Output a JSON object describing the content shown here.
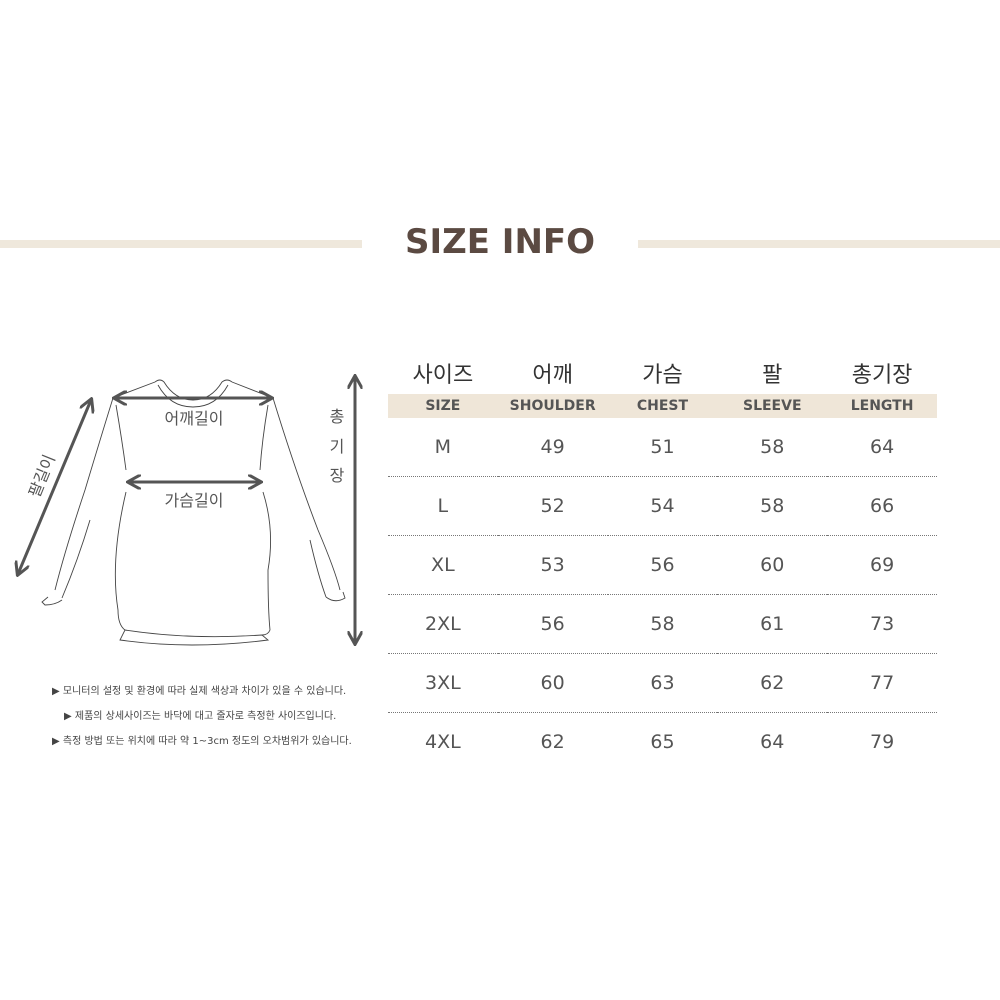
{
  "title": "SIZE INFO",
  "diagram": {
    "shoulder": "어깨길이",
    "chest": "가슴길이",
    "sleeve": "팔길이",
    "length": [
      "총",
      "기",
      "장"
    ]
  },
  "notes": [
    "▶ 모니터의 설정 및 환경에 따라 실제 색상과 차이가 있을 수 있습니다.",
    "▶ 제품의 상세사이즈는 바닥에 대고 줄자로 측정한 사이즈입니다.",
    "▶ 측정 방법 또는 위치에 따라 약 1~3cm 정도의 오차범위가 있습니다."
  ],
  "table": {
    "headers_kr": [
      "사이즈",
      "어깨",
      "가슴",
      "팔",
      "총기장"
    ],
    "headers_en": [
      "SIZE",
      "SHOULDER",
      "CHEST",
      "SLEEVE",
      "LENGTH"
    ],
    "rows": [
      [
        "M",
        "49",
        "51",
        "58",
        "64"
      ],
      [
        "L",
        "52",
        "54",
        "58",
        "66"
      ],
      [
        "XL",
        "53",
        "56",
        "60",
        "69"
      ],
      [
        "2XL",
        "56",
        "58",
        "61",
        "73"
      ],
      [
        "3XL",
        "60",
        "63",
        "62",
        "77"
      ],
      [
        "4XL",
        "62",
        "65",
        "64",
        "79"
      ]
    ]
  },
  "colors": {
    "title": "#5b4a42",
    "bar": "#efe8dc",
    "header_band": "#efe6d8"
  }
}
